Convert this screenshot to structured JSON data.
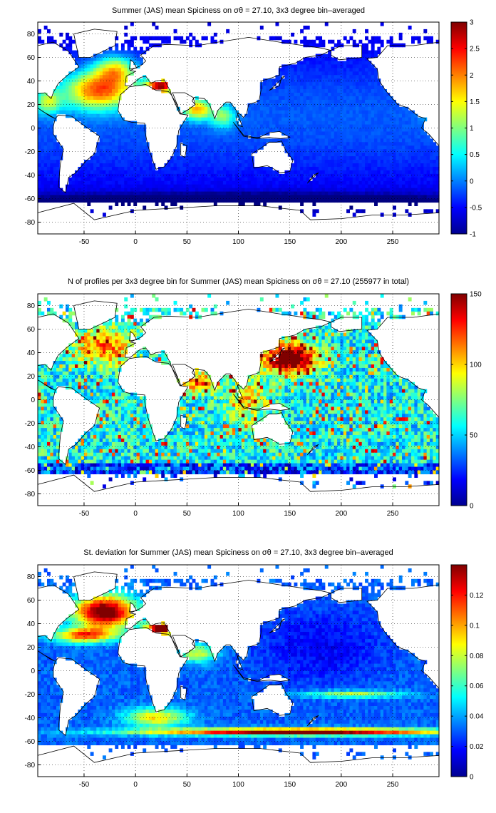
{
  "chart_data": [
    {
      "type": "heatmap",
      "title": "Summer (JAS) mean Spiciness on σθ = 27.10, 3x3 degree bin–averaged",
      "x_ticks": [
        -50,
        0,
        50,
        100,
        150,
        200,
        250
      ],
      "y_ticks": [
        80,
        60,
        40,
        20,
        0,
        -20,
        -40,
        -60,
        -80
      ],
      "xlim": [
        -95,
        295
      ],
      "ylim": [
        -90,
        90
      ],
      "grid": true,
      "colorbar": {
        "min": -1,
        "max": 3,
        "ticks": [
          "3",
          "2.5",
          "2",
          "1.5",
          "1",
          "0.5",
          "0",
          "-0.5",
          "-1"
        ]
      },
      "field": "spice"
    },
    {
      "type": "heatmap",
      "title": "N of profiles per 3x3 degree bin for Summer (JAS) mean Spiciness on σθ = 27.10 (255977 in total)",
      "x_ticks": [
        -50,
        0,
        50,
        100,
        150,
        200,
        250
      ],
      "y_ticks": [
        80,
        60,
        40,
        20,
        0,
        -20,
        -40,
        -60,
        -80
      ],
      "xlim": [
        -95,
        295
      ],
      "ylim": [
        -90,
        90
      ],
      "grid": true,
      "colorbar": {
        "min": 0,
        "max": 150,
        "ticks": [
          "150",
          "100",
          "50",
          "0"
        ]
      },
      "field": "count"
    },
    {
      "type": "heatmap",
      "title": "St. deviation for Summer (JAS) mean Spiciness on σθ = 27.10, 3x3 degree bin–averaged",
      "x_ticks": [
        -50,
        0,
        50,
        100,
        150,
        200,
        250
      ],
      "y_ticks": [
        80,
        60,
        40,
        20,
        0,
        -20,
        -40,
        -60,
        -80
      ],
      "xlim": [
        -95,
        295
      ],
      "ylim": [
        -90,
        90
      ],
      "grid": true,
      "colorbar": {
        "min": 0,
        "max": 0.14,
        "ticks": [
          "0.12",
          "0.1",
          "0.08",
          "0.06",
          "0.04",
          "0.02",
          "0"
        ]
      },
      "field": "std"
    }
  ]
}
